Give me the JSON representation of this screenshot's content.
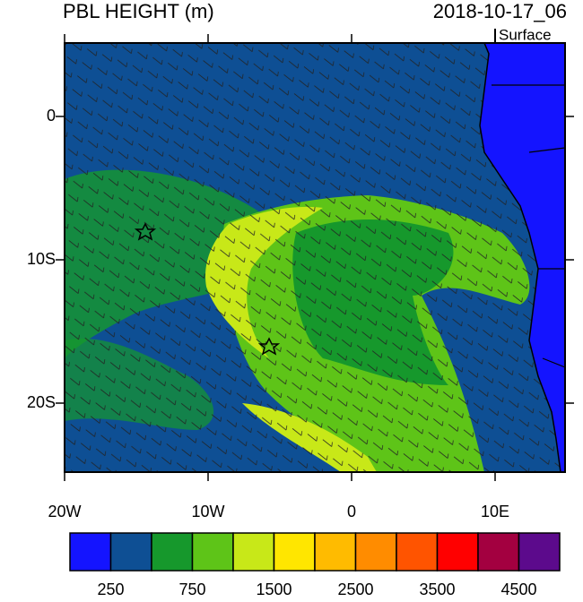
{
  "header": {
    "title": "PBL HEIGHT (m)",
    "date": "2018-10-17_06",
    "level": "Surface"
  },
  "map": {
    "lon_ticks": [
      {
        "value": -20,
        "label": "20W"
      },
      {
        "value": -10,
        "label": "10W"
      },
      0,
      {
        "value": 10,
        "label": "10E"
      }
    ],
    "lat_ticks": [
      0,
      {
        "value": -10,
        "label": "10S"
      },
      {
        "value": -20,
        "label": "20S"
      }
    ]
  },
  "colorbar": {
    "colors": [
      "#1414ff",
      "#0e4f94",
      "#16982c",
      "#5ec418",
      "#c8e818",
      "#ffe600",
      "#ffbb00",
      "#ff8c00",
      "#ff5400",
      "#ff0000",
      "#a30040",
      "#5c0a8c"
    ],
    "labels": [
      250,
      750,
      1500,
      2500,
      3500,
      4500
    ]
  }
}
